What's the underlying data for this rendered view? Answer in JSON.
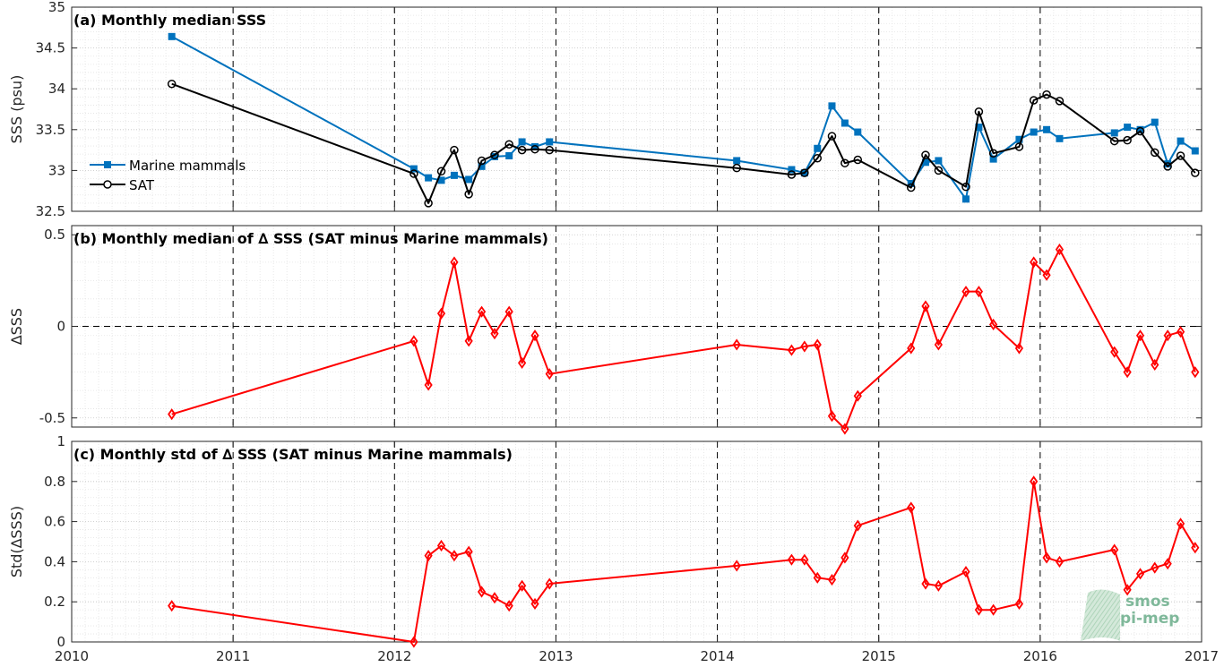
{
  "chart_data": [
    {
      "type": "line",
      "title": "(a) Monthly median SSS",
      "ylabel": "SSS (psu)",
      "xlim": [
        2010,
        2017
      ],
      "ylim": [
        32.5,
        35
      ],
      "xticks": [
        "2010",
        "2011",
        "2012",
        "2013",
        "2014",
        "2015",
        "2016",
        "2017"
      ],
      "yticks": [
        "32.5",
        "33",
        "33.5",
        "34",
        "34.5",
        "35"
      ],
      "grid": true,
      "legend": "left",
      "series": [
        {
          "name": "Marine mammals",
          "color": "#0072bd",
          "marker": "square",
          "x": [
            2010.62,
            2012.12,
            2012.21,
            2012.29,
            2012.37,
            2012.46,
            2012.54,
            2012.62,
            2012.71,
            2012.79,
            2012.87,
            2012.96,
            2014.12,
            2014.46,
            2014.54,
            2014.62,
            2014.71,
            2014.79,
            2014.87,
            2015.2,
            2015.29,
            2015.37,
            2015.54,
            2015.62,
            2015.71,
            2015.87,
            2015.96,
            2016.04,
            2016.12,
            2016.46,
            2016.54,
            2016.62,
            2016.71,
            2016.79,
            2016.87,
            2016.96
          ],
          "values": [
            34.64,
            33.02,
            32.91,
            32.88,
            32.94,
            32.89,
            33.05,
            33.17,
            33.18,
            33.35,
            33.29,
            33.35,
            33.12,
            33.01,
            32.97,
            33.27,
            33.79,
            33.58,
            33.47,
            32.84,
            33.1,
            33.12,
            32.65,
            33.53,
            33.14,
            33.38,
            33.47,
            33.5,
            33.39,
            33.46,
            33.53,
            33.5,
            33.59,
            33.08,
            33.36,
            33.24
          ]
        },
        {
          "name": "SAT",
          "color": "#000000",
          "marker": "circle",
          "x": [
            2010.62,
            2012.12,
            2012.21,
            2012.29,
            2012.37,
            2012.46,
            2012.54,
            2012.62,
            2012.71,
            2012.79,
            2012.87,
            2012.96,
            2014.12,
            2014.46,
            2014.54,
            2014.62,
            2014.71,
            2014.79,
            2014.87,
            2015.2,
            2015.29,
            2015.37,
            2015.54,
            2015.62,
            2015.71,
            2015.87,
            2015.96,
            2016.04,
            2016.12,
            2016.46,
            2016.54,
            2016.62,
            2016.71,
            2016.79,
            2016.87,
            2016.96
          ],
          "values": [
            34.06,
            32.96,
            32.6,
            32.99,
            33.25,
            32.71,
            33.12,
            33.19,
            33.32,
            33.25,
            33.26,
            33.25,
            33.03,
            32.95,
            32.97,
            33.15,
            33.42,
            33.09,
            33.13,
            32.79,
            33.19,
            33.0,
            32.8,
            33.72,
            33.21,
            33.29,
            33.86,
            33.93,
            33.85,
            33.36,
            33.37,
            33.48,
            33.22,
            33.05,
            33.18,
            32.97
          ]
        }
      ]
    },
    {
      "type": "line",
      "title": "(b) Monthly median of ∆ SSS (SAT minus Marine mammals)",
      "ylabel": "∆SSS",
      "xlim": [
        2010,
        2017
      ],
      "ylim": [
        -0.55,
        0.55
      ],
      "xticks": [
        "2010",
        "2011",
        "2012",
        "2013",
        "2014",
        "2015",
        "2016",
        "2017"
      ],
      "yticks": [
        "-0.5",
        "0",
        "0.5"
      ],
      "grid": true,
      "series": [
        {
          "color": "#ff0000",
          "marker": "diamond",
          "x": [
            2010.62,
            2012.12,
            2012.21,
            2012.29,
            2012.37,
            2012.46,
            2012.54,
            2012.62,
            2012.71,
            2012.79,
            2012.87,
            2012.96,
            2014.12,
            2014.46,
            2014.54,
            2014.62,
            2014.71,
            2014.79,
            2014.87,
            2015.2,
            2015.29,
            2015.37,
            2015.54,
            2015.62,
            2015.71,
            2015.87,
            2015.96,
            2016.04,
            2016.12,
            2016.46,
            2016.54,
            2016.62,
            2016.71,
            2016.79,
            2016.87,
            2016.96
          ],
          "values": [
            -0.48,
            -0.08,
            -0.32,
            0.07,
            0.35,
            -0.08,
            0.08,
            -0.04,
            0.08,
            -0.2,
            -0.05,
            -0.26,
            -0.1,
            -0.13,
            -0.11,
            -0.1,
            -0.49,
            -0.56,
            -0.38,
            -0.12,
            0.11,
            -0.1,
            0.19,
            0.19,
            0.01,
            -0.12,
            0.35,
            0.28,
            0.42,
            -0.14,
            -0.25,
            -0.05,
            -0.21,
            -0.05,
            -0.03,
            -0.25
          ]
        }
      ]
    },
    {
      "type": "line",
      "title": "(c) Monthly std of ∆ SSS (SAT minus Marine mammals)",
      "ylabel": "Std(∆SSS)",
      "xlabel": "",
      "xlim": [
        2010,
        2017
      ],
      "ylim": [
        0,
        1
      ],
      "xticks": [
        "2010",
        "2011",
        "2012",
        "2013",
        "2014",
        "2015",
        "2016",
        "2017"
      ],
      "yticks": [
        "0",
        "0.2",
        "0.4",
        "0.6",
        "0.8",
        "1"
      ],
      "grid": true,
      "series": [
        {
          "color": "#ff0000",
          "marker": "diamond",
          "x": [
            2010.62,
            2012.12,
            2012.21,
            2012.29,
            2012.37,
            2012.46,
            2012.54,
            2012.62,
            2012.71,
            2012.79,
            2012.87,
            2012.96,
            2014.12,
            2014.46,
            2014.54,
            2014.62,
            2014.71,
            2014.79,
            2014.87,
            2015.2,
            2015.29,
            2015.37,
            2015.54,
            2015.62,
            2015.71,
            2015.87,
            2015.96,
            2016.04,
            2016.12,
            2016.46,
            2016.54,
            2016.62,
            2016.71,
            2016.79,
            2016.87,
            2016.96
          ],
          "values": [
            0.18,
            0.0,
            0.43,
            0.48,
            0.43,
            0.45,
            0.25,
            0.22,
            0.18,
            0.28,
            0.19,
            0.29,
            0.38,
            0.41,
            0.41,
            0.32,
            0.31,
            0.42,
            0.58,
            0.67,
            0.29,
            0.28,
            0.35,
            0.16,
            0.16,
            0.19,
            0.8,
            0.42,
            0.4,
            0.46,
            0.26,
            0.34,
            0.37,
            0.39,
            0.59,
            0.47
          ]
        }
      ]
    }
  ],
  "logo": {
    "line1": "smos",
    "line2": "pi-mep"
  }
}
